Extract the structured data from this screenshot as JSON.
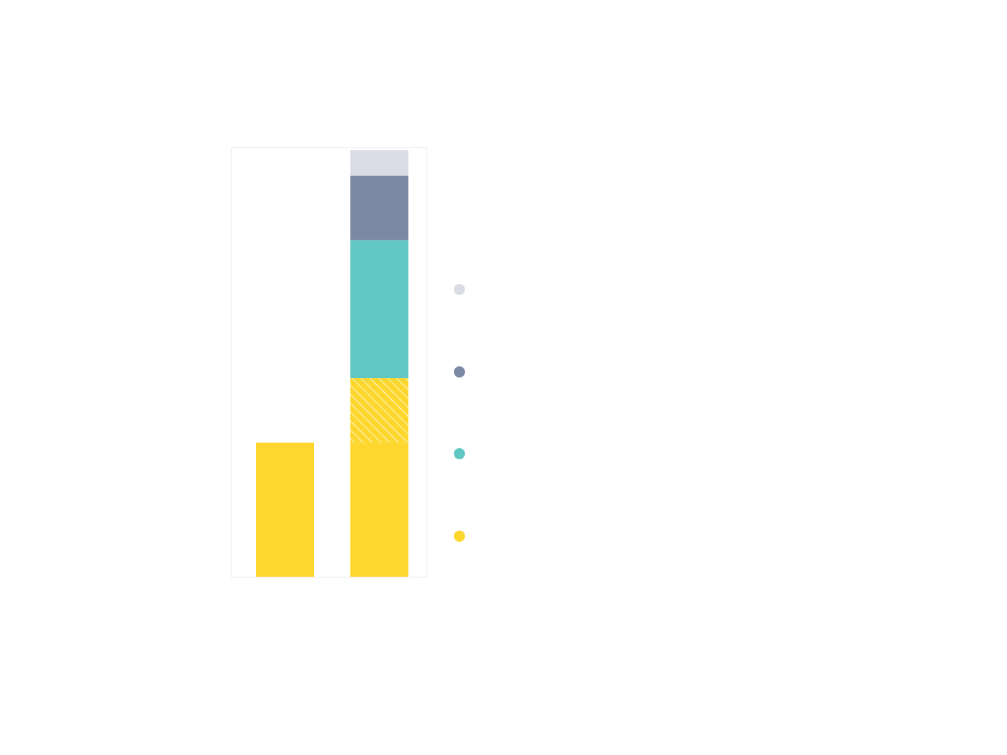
{
  "chart_data": {
    "type": "bar",
    "stacked": true,
    "legend": "right",
    "tick_labels": false,
    "categories": [
      null,
      null
    ],
    "ylim": [
      0,
      320
    ],
    "series": [
      {
        "color": "#fdd72e",
        "values": [
          100,
          100
        ]
      },
      {
        "color": "#fdd72e",
        "line_style": "hatched",
        "values": [
          null,
          48
        ]
      },
      {
        "color": "#60c7c4",
        "values": [
          null,
          103
        ]
      },
      {
        "color": "#7d88a3",
        "values": [
          null,
          48
        ]
      },
      {
        "color": "#dadce5",
        "values": [
          null,
          19
        ]
      }
    ]
  }
}
